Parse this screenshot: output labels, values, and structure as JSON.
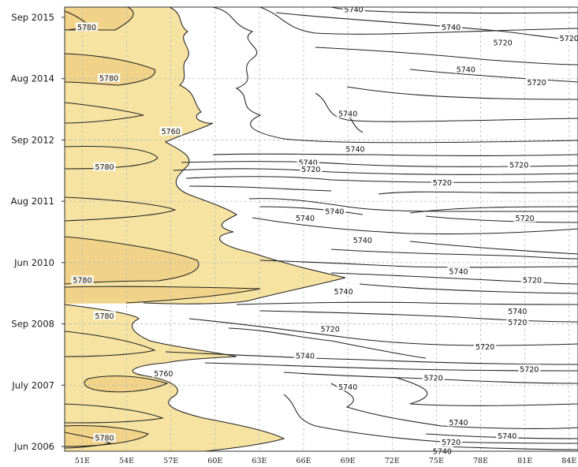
{
  "chart_data": {
    "type": "contour",
    "x_tick_labels": [
      "51E",
      "54E",
      "57E",
      "60E",
      "63E",
      "66E",
      "69E",
      "72E",
      "75E",
      "78E",
      "81E",
      "84E"
    ],
    "x_values": [
      51,
      54,
      57,
      60,
      63,
      66,
      69,
      72,
      75,
      78,
      81,
      84
    ],
    "xlim": [
      49.8,
      84.6
    ],
    "y_tick_labels": [
      "Sep 2015",
      "Aug 2014",
      "Sep 2012",
      "Aug 2011",
      "Jun 2010",
      "Sep 2008",
      "July 2007",
      "Jun 2006"
    ],
    "levels": [
      5720,
      5740,
      5760,
      5780
    ],
    "contour_labels": [
      {
        "text": "5740",
        "x": 69.4,
        "y": 0.995
      },
      {
        "text": "5780",
        "x": 51.3,
        "y": 0.955
      },
      {
        "text": "5740",
        "x": 76.0,
        "y": 0.955
      },
      {
        "text": "5720",
        "x": 79.5,
        "y": 0.92
      },
      {
        "text": "5720",
        "x": 84.0,
        "y": 0.93
      },
      {
        "text": "5780",
        "x": 52.8,
        "y": 0.84
      },
      {
        "text": "5740",
        "x": 77.0,
        "y": 0.86
      },
      {
        "text": "5720",
        "x": 81.8,
        "y": 0.83
      },
      {
        "text": "5740",
        "x": 69.0,
        "y": 0.76
      },
      {
        "text": "5760",
        "x": 57.0,
        "y": 0.72
      },
      {
        "text": "5740",
        "x": 69.5,
        "y": 0.68
      },
      {
        "text": "5780",
        "x": 52.5,
        "y": 0.64
      },
      {
        "text": "5740",
        "x": 66.3,
        "y": 0.65
      },
      {
        "text": "5720",
        "x": 66.5,
        "y": 0.635
      },
      {
        "text": "5720",
        "x": 80.6,
        "y": 0.645
      },
      {
        "text": "5720",
        "x": 75.4,
        "y": 0.605
      },
      {
        "text": "5740",
        "x": 68.1,
        "y": 0.54
      },
      {
        "text": "5740",
        "x": 66.1,
        "y": 0.525
      },
      {
        "text": "5720",
        "x": 81.0,
        "y": 0.525
      },
      {
        "text": "5740",
        "x": 70.0,
        "y": 0.475
      },
      {
        "text": "5740",
        "x": 76.5,
        "y": 0.405
      },
      {
        "text": "5780",
        "x": 51.0,
        "y": 0.385
      },
      {
        "text": "5720",
        "x": 81.5,
        "y": 0.385
      },
      {
        "text": "5740",
        "x": 68.7,
        "y": 0.36
      },
      {
        "text": "5780",
        "x": 52.5,
        "y": 0.305
      },
      {
        "text": "5740",
        "x": 80.5,
        "y": 0.315
      },
      {
        "text": "5720",
        "x": 80.5,
        "y": 0.29
      },
      {
        "text": "5720",
        "x": 67.8,
        "y": 0.275
      },
      {
        "text": "5720",
        "x": 78.3,
        "y": 0.235
      },
      {
        "text": "5740",
        "x": 66.1,
        "y": 0.215
      },
      {
        "text": "5720",
        "x": 81.3,
        "y": 0.185
      },
      {
        "text": "5760",
        "x": 56.5,
        "y": 0.175
      },
      {
        "text": "5720",
        "x": 74.8,
        "y": 0.165
      },
      {
        "text": "5740",
        "x": 69.0,
        "y": 0.145
      },
      {
        "text": "5740",
        "x": 76.5,
        "y": 0.065
      },
      {
        "text": "5740",
        "x": 79.8,
        "y": 0.035
      },
      {
        "text": "5780",
        "x": 52.5,
        "y": 0.03
      },
      {
        "text": "5720",
        "x": 76.0,
        "y": 0.02
      },
      {
        "text": "5740",
        "x": 75.4,
        "y": 0.0
      }
    ],
    "fill_colors": {
      "above_5760": "#f6e3a2",
      "above_5780": "#f3d08b"
    },
    "grid": true
  }
}
